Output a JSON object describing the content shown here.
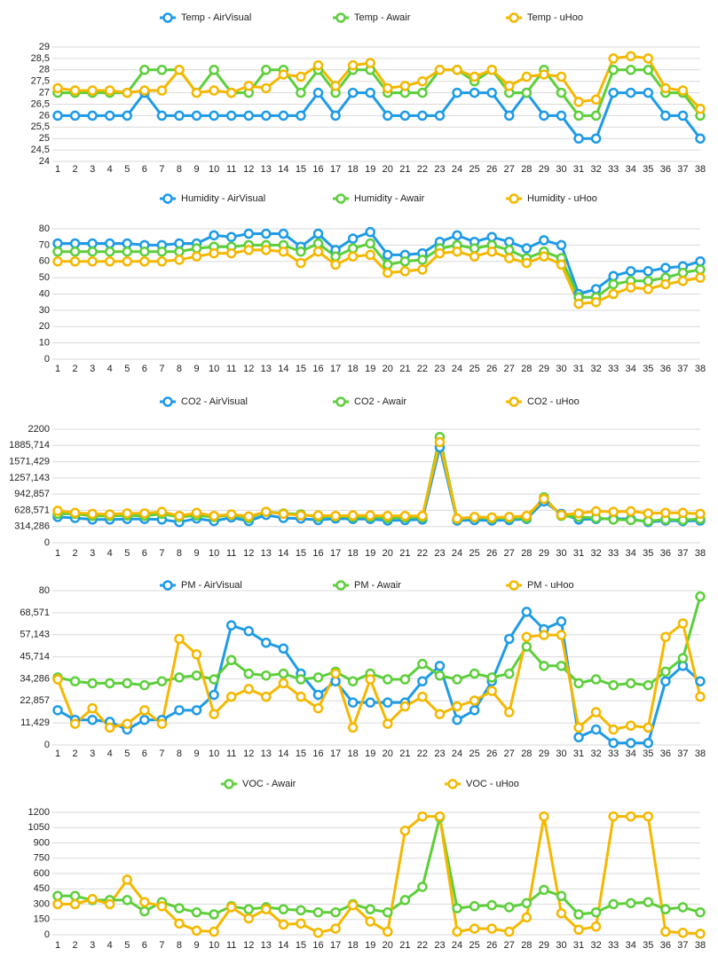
{
  "chart_data": [
    {
      "type": "line",
      "grid": true,
      "categories": [
        1,
        2,
        3,
        4,
        5,
        6,
        7,
        8,
        9,
        10,
        11,
        12,
        13,
        14,
        15,
        16,
        17,
        18,
        19,
        20,
        21,
        22,
        23,
        24,
        25,
        26,
        27,
        28,
        29,
        30,
        31,
        32,
        33,
        34,
        35,
        36,
        37,
        38
      ],
      "ylim": [
        24,
        29
      ],
      "yticks": [
        24,
        {
          "value": 24.5,
          "label": "24,5"
        },
        25,
        {
          "value": 25.5,
          "label": "25,5"
        },
        26,
        {
          "value": 26.5,
          "label": "26,5"
        },
        27,
        {
          "value": 27.5,
          "label": "27,5"
        },
        28,
        {
          "value": 28.5,
          "label": "28,5"
        },
        29
      ],
      "series": [
        {
          "name": "Temp - AirVisual",
          "color": "#1e9be6",
          "values": [
            26,
            26,
            26,
            26,
            26,
            27,
            26,
            26,
            26,
            26,
            26,
            26,
            26,
            26,
            26,
            27,
            26,
            27,
            27,
            26,
            26,
            26,
            26,
            27,
            27,
            27,
            26,
            27,
            26,
            26,
            25,
            25,
            27,
            27,
            27,
            26,
            26,
            25
          ]
        },
        {
          "name": "Temp - Awair",
          "color": "#5ccf3a",
          "values": [
            27,
            27,
            27,
            27,
            27,
            28,
            28,
            28,
            27,
            28,
            27,
            27,
            28,
            28,
            27,
            28,
            27,
            28,
            28,
            27,
            27,
            27,
            28,
            28,
            27.5,
            28,
            27,
            27,
            28,
            27,
            26,
            26,
            28,
            28,
            28,
            27,
            27,
            26
          ]
        },
        {
          "name": "Temp - uHoo",
          "color": "#f5b800",
          "values": [
            27.2,
            27.1,
            27.1,
            27.1,
            27,
            27.1,
            27.1,
            28,
            27,
            27.1,
            27,
            27.3,
            27.2,
            27.8,
            27.7,
            28.2,
            27.3,
            28.2,
            28.3,
            27.2,
            27.3,
            27.5,
            28,
            28,
            27.7,
            28,
            27.3,
            27.7,
            27.8,
            27.7,
            26.6,
            26.7,
            28.5,
            28.6,
            28.5,
            27.2,
            27.1,
            26.3
          ]
        }
      ]
    },
    {
      "type": "line",
      "grid": true,
      "categories": [
        1,
        2,
        3,
        4,
        5,
        6,
        7,
        8,
        9,
        10,
        11,
        12,
        13,
        14,
        15,
        16,
        17,
        18,
        19,
        20,
        21,
        22,
        23,
        24,
        25,
        26,
        27,
        28,
        29,
        30,
        31,
        32,
        33,
        34,
        35,
        36,
        37,
        38
      ],
      "ylim": [
        0,
        80
      ],
      "yticks": [
        0,
        10,
        20,
        30,
        40,
        50,
        60,
        70,
        80
      ],
      "series": [
        {
          "name": "Humidity - AirVisual",
          "color": "#1e9be6",
          "values": [
            71,
            71,
            71,
            71,
            71,
            70,
            70,
            71,
            71,
            76,
            75,
            77,
            77,
            77,
            69,
            77,
            67,
            74,
            78,
            64,
            64,
            65,
            72,
            76,
            72,
            75,
            72,
            68,
            73,
            70,
            40,
            43,
            51,
            54,
            54,
            56,
            57,
            60
          ]
        },
        {
          "name": "Humidity - Awair",
          "color": "#5ccf3a",
          "values": [
            66,
            66,
            66,
            66,
            66,
            66,
            66,
            66,
            68,
            69,
            69,
            70,
            70,
            70,
            66,
            71,
            63,
            68,
            71,
            58,
            60,
            61,
            68,
            70,
            68,
            70,
            67,
            62,
            66,
            62,
            38,
            38,
            46,
            48,
            48,
            50,
            53,
            55
          ]
        },
        {
          "name": "Humidity - uHoo",
          "color": "#f5b800",
          "values": [
            60,
            60,
            60,
            60,
            60,
            60,
            60,
            61,
            63,
            65,
            65,
            67,
            67,
            66,
            59,
            66,
            58,
            63,
            64,
            53,
            54,
            55,
            65,
            66,
            63,
            66,
            62,
            59,
            63,
            58,
            34,
            35,
            40,
            44,
            43,
            46,
            48,
            50
          ]
        }
      ]
    },
    {
      "type": "line",
      "grid": true,
      "categories": [
        1,
        2,
        3,
        4,
        5,
        6,
        7,
        8,
        9,
        10,
        11,
        12,
        13,
        14,
        15,
        16,
        17,
        18,
        19,
        20,
        21,
        22,
        23,
        24,
        25,
        26,
        27,
        28,
        29,
        30,
        31,
        32,
        33,
        34,
        35,
        36,
        37,
        38
      ],
      "ylim": [
        0,
        2200
      ],
      "yticks": [
        0,
        {
          "value": 314.286,
          "label": "314,286"
        },
        {
          "value": 628.571,
          "label": "628,571"
        },
        {
          "value": 942.857,
          "label": "942,857"
        },
        {
          "value": 1257.143,
          "label": "1257,143"
        },
        {
          "value": 1571.429,
          "label": "1571,429"
        },
        {
          "value": 1885.714,
          "label": "1885,714"
        },
        2200
      ],
      "series": [
        {
          "name": "CO2 - AirVisual",
          "color": "#1e9be6",
          "values": [
            500,
            480,
            450,
            450,
            460,
            460,
            450,
            400,
            470,
            420,
            490,
            420,
            540,
            480,
            470,
            440,
            470,
            460,
            460,
            430,
            440,
            450,
            1850,
            430,
            440,
            430,
            440,
            460,
            800,
            560,
            450,
            460,
            470,
            460,
            400,
            430,
            420,
            430
          ]
        },
        {
          "name": "CO2 - Awair",
          "color": "#5ccf3a",
          "values": [
            560,
            560,
            520,
            520,
            530,
            520,
            560,
            500,
            530,
            500,
            540,
            480,
            600,
            570,
            550,
            500,
            510,
            500,
            500,
            480,
            490,
            490,
            2050,
            460,
            490,
            470,
            480,
            480,
            880,
            520,
            500,
            480,
            450,
            440,
            420,
            450,
            440,
            460
          ]
        },
        {
          "name": "CO2 - uHoo",
          "color": "#f5b800",
          "values": [
            620,
            580,
            560,
            550,
            570,
            570,
            600,
            520,
            580,
            520,
            550,
            510,
            600,
            560,
            530,
            530,
            520,
            530,
            530,
            520,
            520,
            520,
            1950,
            470,
            500,
            490,
            500,
            520,
            850,
            540,
            570,
            610,
            600,
            610,
            570,
            580,
            580,
            560
          ]
        }
      ]
    },
    {
      "type": "line",
      "grid": true,
      "categories": [
        1,
        2,
        3,
        4,
        5,
        6,
        7,
        8,
        9,
        10,
        11,
        12,
        13,
        14,
        15,
        16,
        17,
        18,
        19,
        20,
        21,
        22,
        23,
        24,
        25,
        26,
        27,
        28,
        29,
        30,
        31,
        32,
        33,
        34,
        35,
        36,
        37,
        38
      ],
      "ylim": [
        0,
        80
      ],
      "yticks": [
        0,
        {
          "value": 11.429,
          "label": "11,429"
        },
        {
          "value": 22.857,
          "label": "22,857"
        },
        {
          "value": 34.286,
          "label": "34,286"
        },
        {
          "value": 45.714,
          "label": "45,714"
        },
        {
          "value": 57.143,
          "label": "57,143"
        },
        {
          "value": 68.571,
          "label": "68,571"
        },
        80
      ],
      "series": [
        {
          "name": "PM - AirVisual",
          "color": "#1e9be6",
          "values": [
            18,
            13,
            13,
            12,
            8,
            13,
            13,
            18,
            18,
            26,
            62,
            59,
            53,
            50,
            37,
            26,
            33,
            22,
            22,
            22,
            22,
            33,
            41,
            13,
            18,
            33,
            55,
            69,
            60,
            64,
            4,
            8,
            1,
            1,
            1,
            33,
            41,
            33
          ]
        },
        {
          "name": "PM - Awair",
          "color": "#5ccf3a",
          "values": [
            35,
            33,
            32,
            32,
            32,
            31,
            33,
            35,
            36,
            34,
            44,
            37,
            36,
            37,
            34,
            35,
            38,
            33,
            37,
            34,
            34,
            42,
            36,
            34,
            37,
            35,
            37,
            51,
            41,
            41,
            32,
            34,
            31,
            32,
            31,
            38,
            45,
            77
          ]
        },
        {
          "name": "PM - uHoo",
          "color": "#f5b800",
          "values": [
            34,
            11,
            19,
            9,
            11,
            18,
            11,
            55,
            47,
            16,
            25,
            29,
            25,
            32,
            25,
            19,
            37,
            9,
            34,
            11,
            20,
            25,
            16,
            20,
            23,
            28,
            17,
            56,
            57,
            57,
            9,
            17,
            8,
            10,
            9,
            56,
            63,
            25
          ]
        }
      ]
    },
    {
      "type": "line",
      "grid": true,
      "categories": [
        1,
        2,
        3,
        4,
        5,
        6,
        7,
        8,
        9,
        10,
        11,
        12,
        13,
        14,
        15,
        16,
        17,
        18,
        19,
        20,
        21,
        22,
        23,
        24,
        25,
        26,
        27,
        28,
        29,
        30,
        31,
        32,
        33,
        34,
        35,
        36,
        37,
        38
      ],
      "ylim": [
        0,
        1200
      ],
      "yticks": [
        0,
        150,
        300,
        450,
        600,
        750,
        900,
        1050,
        1200
      ],
      "series": [
        {
          "name": "VOC - Awair",
          "color": "#5ccf3a",
          "values": [
            380,
            380,
            340,
            340,
            340,
            230,
            320,
            260,
            220,
            200,
            280,
            250,
            270,
            250,
            240,
            220,
            220,
            300,
            250,
            220,
            340,
            470,
            1150,
            260,
            280,
            290,
            270,
            310,
            440,
            380,
            200,
            220,
            300,
            310,
            320,
            250,
            270,
            220
          ]
        },
        {
          "name": "VOC - uHoo",
          "color": "#f5b800",
          "values": [
            300,
            300,
            350,
            300,
            540,
            320,
            280,
            110,
            40,
            30,
            270,
            160,
            250,
            100,
            110,
            20,
            60,
            290,
            130,
            30,
            1020,
            1160,
            1160,
            30,
            60,
            60,
            30,
            170,
            1160,
            210,
            50,
            80,
            1160,
            1160,
            1160,
            30,
            20,
            10
          ]
        }
      ]
    }
  ]
}
